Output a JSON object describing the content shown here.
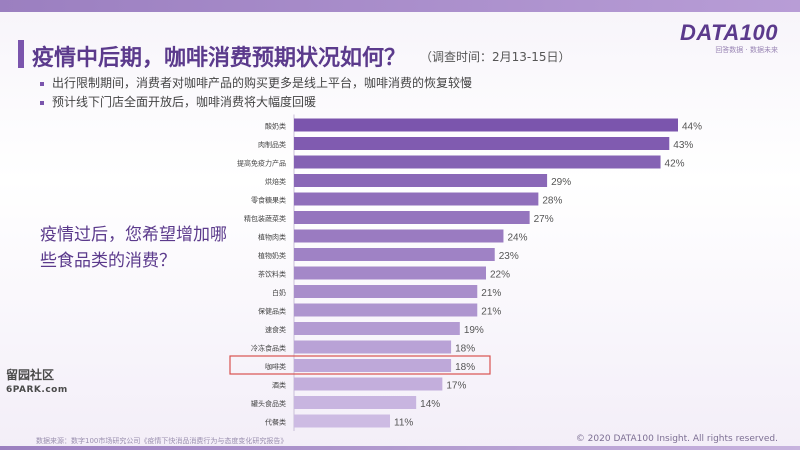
{
  "header": {
    "title": "疫情中后期，咖啡消费预期状况如何？",
    "survey_time": "（调查时间：2月13-15日）",
    "logo": "DATA100",
    "logo_sub": "回答数据 · 数据未来"
  },
  "bullets": [
    "出行限制期间，消费者对咖啡产品的购买更多是线上平台，咖啡消费的恢复较慢",
    "预计线下门店全面开放后，咖啡消费将大幅度回暖"
  ],
  "question": "疫情过后，您希望增加哪些食品类的消费？",
  "footer": {
    "source": "数据来源：数字100市场研究公司《疫情下快消品消费行为与态度变化研究报告》",
    "copyright": "© 2020 DATA100 Insight. All rights reserved."
  },
  "stamp": {
    "line1": "留园社区",
    "line2": "6PARK.com"
  },
  "colors": {
    "bar_dark": "#7b55ad",
    "bar_light": "#cdbbe3",
    "highlight_border": "#d9534f",
    "title": "#5b3a8c"
  },
  "chart_data": {
    "type": "bar",
    "orientation": "horizontal",
    "categories": [
      "酸奶类",
      "肉制品类",
      "提高免疫力产品",
      "烘焙类",
      "零食糖果类",
      "精包装蔬菜类",
      "植物肉类",
      "植物奶类",
      "茶饮料类",
      "白奶",
      "保健品类",
      "速食类",
      "冷冻食品类",
      "咖啡类",
      "酒类",
      "罐头食品类",
      "代餐类"
    ],
    "values": [
      44,
      43,
      42,
      29,
      28,
      27,
      24,
      23,
      22,
      21,
      21,
      19,
      18,
      18,
      17,
      14,
      11
    ],
    "value_suffix": "%",
    "highlight_category": "咖啡类",
    "xlim": [
      0,
      44
    ],
    "grid": false,
    "legend": "none"
  }
}
